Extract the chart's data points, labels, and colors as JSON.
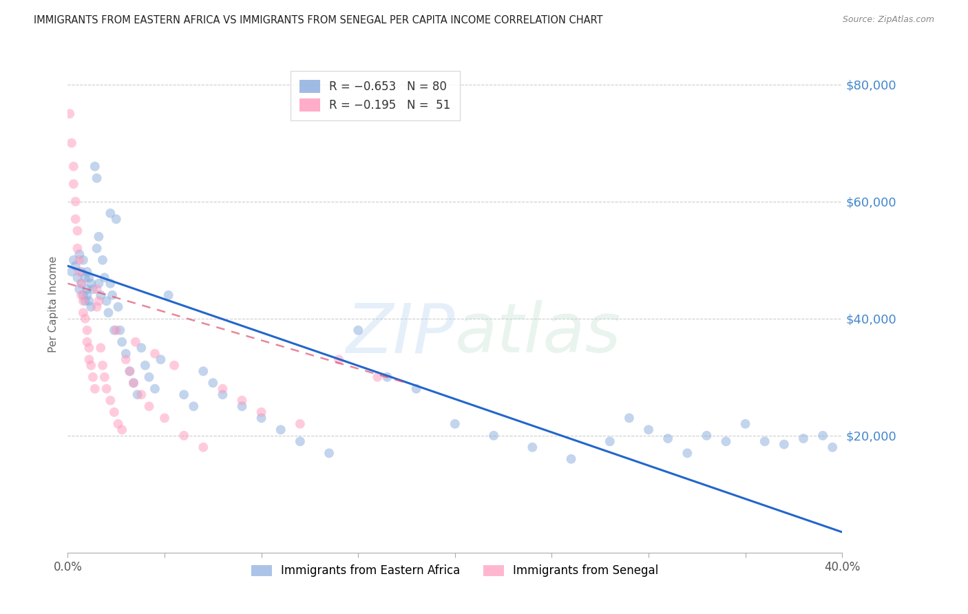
{
  "title": "IMMIGRANTS FROM EASTERN AFRICA VS IMMIGRANTS FROM SENEGAL PER CAPITA INCOME CORRELATION CHART",
  "source": "Source: ZipAtlas.com",
  "ylabel": "Per Capita Income",
  "ytick_labels": [
    "$80,000",
    "$60,000",
    "$40,000",
    "$20,000"
  ],
  "ytick_values": [
    80000,
    60000,
    40000,
    20000
  ],
  "yaxis_color": "#4488cc",
  "background_color": "#ffffff",
  "scatter_alpha": 0.5,
  "scatter_size": 100,
  "blue_color": "#88aadd",
  "pink_color": "#ff99bb",
  "line_blue_color": "#2266cc",
  "line_pink_color": "#dd4466",
  "grid_color": "#cccccc",
  "xlim": [
    0.0,
    0.4
  ],
  "ylim": [
    0,
    85000
  ],
  "blue_scatter_x": [
    0.002,
    0.003,
    0.004,
    0.005,
    0.006,
    0.006,
    0.007,
    0.007,
    0.008,
    0.008,
    0.009,
    0.009,
    0.01,
    0.01,
    0.01,
    0.011,
    0.011,
    0.012,
    0.012,
    0.013,
    0.014,
    0.015,
    0.015,
    0.016,
    0.016,
    0.017,
    0.018,
    0.019,
    0.02,
    0.021,
    0.022,
    0.022,
    0.023,
    0.024,
    0.025,
    0.026,
    0.027,
    0.028,
    0.03,
    0.032,
    0.034,
    0.036,
    0.038,
    0.04,
    0.042,
    0.045,
    0.048,
    0.052,
    0.06,
    0.065,
    0.07,
    0.075,
    0.08,
    0.09,
    0.1,
    0.11,
    0.12,
    0.135,
    0.15,
    0.165,
    0.18,
    0.2,
    0.22,
    0.24,
    0.26,
    0.28,
    0.3,
    0.32,
    0.34,
    0.36,
    0.37,
    0.38,
    0.39,
    0.395,
    0.31,
    0.29,
    0.33,
    0.35
  ],
  "blue_scatter_y": [
    48000,
    50000,
    49000,
    47000,
    51000,
    45000,
    48000,
    46000,
    50000,
    44000,
    47000,
    43000,
    48000,
    45000,
    44000,
    47000,
    43000,
    46000,
    42000,
    45000,
    66000,
    64000,
    52000,
    54000,
    46000,
    44000,
    50000,
    47000,
    43000,
    41000,
    46000,
    58000,
    44000,
    38000,
    57000,
    42000,
    38000,
    36000,
    34000,
    31000,
    29000,
    27000,
    35000,
    32000,
    30000,
    28000,
    33000,
    44000,
    27000,
    25000,
    31000,
    29000,
    27000,
    25000,
    23000,
    21000,
    19000,
    17000,
    38000,
    30000,
    28000,
    22000,
    20000,
    18000,
    16000,
    19000,
    21000,
    17000,
    19000,
    19000,
    18500,
    19500,
    20000,
    18000,
    19500,
    23000,
    20000,
    22000
  ],
  "pink_scatter_x": [
    0.001,
    0.002,
    0.003,
    0.003,
    0.004,
    0.004,
    0.005,
    0.005,
    0.006,
    0.006,
    0.007,
    0.007,
    0.008,
    0.008,
    0.009,
    0.01,
    0.01,
    0.011,
    0.011,
    0.012,
    0.013,
    0.014,
    0.015,
    0.016,
    0.017,
    0.018,
    0.019,
    0.02,
    0.022,
    0.024,
    0.026,
    0.028,
    0.03,
    0.032,
    0.034,
    0.038,
    0.042,
    0.05,
    0.06,
    0.07,
    0.08,
    0.09,
    0.1,
    0.12,
    0.14,
    0.16,
    0.015,
    0.025,
    0.035,
    0.045,
    0.055
  ],
  "pink_scatter_y": [
    75000,
    70000,
    66000,
    63000,
    60000,
    57000,
    55000,
    52000,
    50000,
    48000,
    46000,
    44000,
    43000,
    41000,
    40000,
    38000,
    36000,
    35000,
    33000,
    32000,
    30000,
    28000,
    45000,
    43000,
    35000,
    32000,
    30000,
    28000,
    26000,
    24000,
    22000,
    21000,
    33000,
    31000,
    29000,
    27000,
    25000,
    23000,
    20000,
    18000,
    28000,
    26000,
    24000,
    22000,
    33000,
    30000,
    42000,
    38000,
    36000,
    34000,
    32000
  ],
  "blue_line_x": [
    0.0,
    0.4
  ],
  "blue_line_y": [
    49000,
    3500
  ],
  "pink_line_x": [
    0.0,
    0.175
  ],
  "pink_line_y": [
    46000,
    29000
  ],
  "watermark_zip": "ZIP",
  "watermark_atlas": "atlas"
}
